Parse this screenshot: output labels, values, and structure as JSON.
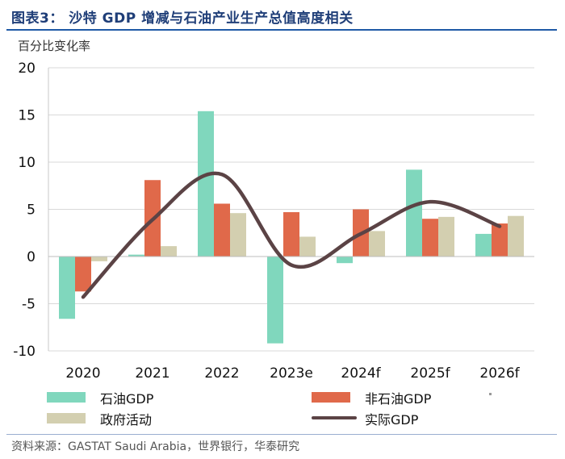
{
  "header": {
    "title": "图表3：  沙特 GDP 增减与石油产业生产总值高度相关",
    "unit_label": "百分比变化率"
  },
  "source": "资料来源：GASTAT Saudi Arabia，世界银行，华泰研究",
  "colors": {
    "oil": "#80d7bd",
    "non_oil": "#e0694a",
    "government": "#d3cfb0",
    "real_gdp": "#5b4345",
    "grid": "#d9d9d9",
    "title": "#1f3e78"
  },
  "chart_data": {
    "type": "bar",
    "title": "沙特 GDP 增减与石油产业生产总值高度相关",
    "ylabel": "百分比变化率",
    "xlabel": "",
    "categories": [
      "2020",
      "2021",
      "2022",
      "2023e",
      "2024f",
      "2025f",
      "2026f"
    ],
    "ylim": [
      -10,
      20
    ],
    "yticks": [
      20,
      15,
      10,
      5,
      0,
      -5,
      -10
    ],
    "ytick_labels": [
      "20",
      "15",
      "10",
      "5",
      "0",
      "-5",
      "-10"
    ],
    "grid": true,
    "legend_position": "bottom",
    "series": [
      {
        "name": "石油GDP",
        "type": "bar",
        "color_key": "oil",
        "values": [
          -6.6,
          0.2,
          15.4,
          -9.2,
          -0.7,
          9.2,
          2.4
        ]
      },
      {
        "name": "非石油GDP",
        "type": "bar",
        "color_key": "non_oil",
        "values": [
          -3.7,
          8.1,
          5.6,
          4.7,
          5.0,
          4.0,
          3.5
        ]
      },
      {
        "name": "政府活动",
        "type": "bar",
        "color_key": "government",
        "values": [
          -0.5,
          1.1,
          4.6,
          2.1,
          2.7,
          4.2,
          4.3
        ]
      },
      {
        "name": "实际GDP",
        "type": "line",
        "color_key": "real_gdp",
        "values": [
          -4.3,
          3.9,
          8.7,
          -0.9,
          2.4,
          5.8,
          3.2
        ]
      }
    ]
  }
}
